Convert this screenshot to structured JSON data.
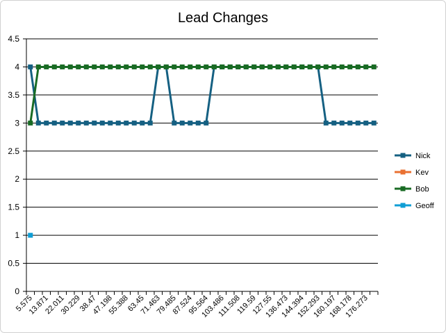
{
  "chart_data": {
    "type": "line",
    "title": "Lead Changes",
    "categories": [
      "5.575",
      null,
      "13.871",
      null,
      "22.011",
      null,
      "30.229",
      null,
      "38.47",
      null,
      "47.198",
      null,
      "55.388",
      null,
      "63.45",
      null,
      "71.463",
      null,
      "79.485",
      null,
      "87.524",
      null,
      "95.564",
      null,
      "103.486",
      null,
      "111.508",
      null,
      "119.59",
      null,
      "127.55",
      null,
      "136.473",
      null,
      "144.394",
      null,
      "152.293",
      null,
      "160.197",
      null,
      "168.178",
      null,
      "176.273",
      null
    ],
    "series": [
      {
        "name": "Nick",
        "color": "#156082",
        "values": [
          4,
          3,
          3,
          3,
          3,
          3,
          3,
          3,
          3,
          3,
          3,
          3,
          3,
          3,
          3,
          3,
          4,
          4,
          3,
          3,
          3,
          3,
          3,
          4,
          4,
          4,
          4,
          4,
          4,
          4,
          4,
          4,
          4,
          4,
          4,
          4,
          4,
          3,
          3,
          3,
          3,
          3,
          3,
          3
        ]
      },
      {
        "name": "Kev",
        "color": "#e97132",
        "values": [
          null,
          null,
          null,
          null,
          null,
          null,
          null,
          null,
          null,
          null,
          null,
          null,
          null,
          null,
          null,
          null,
          null,
          null,
          null,
          null,
          null,
          null,
          null,
          null,
          null,
          null,
          null,
          null,
          null,
          null,
          null,
          null,
          null,
          null,
          null,
          null,
          null,
          null,
          null,
          null,
          null,
          null,
          null,
          null
        ]
      },
      {
        "name": "Bob",
        "color": "#196b24",
        "values": [
          3,
          4,
          4,
          4,
          4,
          4,
          4,
          4,
          4,
          4,
          4,
          4,
          4,
          4,
          4,
          4,
          4,
          4,
          4,
          4,
          4,
          4,
          4,
          4,
          4,
          4,
          4,
          4,
          4,
          4,
          4,
          4,
          4,
          4,
          4,
          4,
          4,
          4,
          4,
          4,
          4,
          4,
          4,
          4
        ]
      },
      {
        "name": "Geoff",
        "color": "#0f9ed5",
        "values": [
          1,
          null,
          null,
          null,
          null,
          null,
          null,
          null,
          null,
          null,
          null,
          null,
          null,
          null,
          null,
          null,
          null,
          null,
          null,
          null,
          null,
          null,
          null,
          null,
          null,
          null,
          null,
          null,
          null,
          null,
          null,
          null,
          null,
          null,
          null,
          null,
          null,
          null,
          null,
          null,
          null,
          null,
          null,
          null
        ]
      }
    ],
    "ylim": [
      0,
      4.5
    ],
    "yticks": [
      0,
      0.5,
      1,
      1.5,
      2,
      2.5,
      3,
      3.5,
      4,
      4.5
    ],
    "grid": true,
    "legend": "right"
  }
}
